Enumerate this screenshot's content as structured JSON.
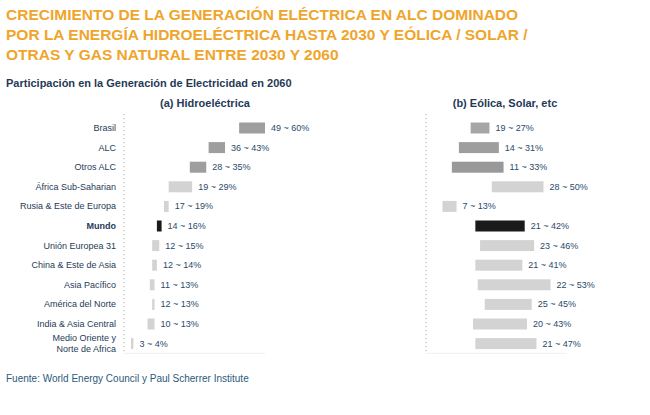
{
  "chart_data": {
    "type": "bar",
    "orientation": "horizontal",
    "title": "CRECIMIENTO DE LA GENERACIÓN ELÉCTRICA EN ALC DOMINADO\nPOR LA ENERGÍA HIDROELÉCTRICA HASTA 2030 Y EÓLICA / SOLAR /\nOTRAS Y GAS NATURAL ENTRE 2030 Y 2060",
    "subtitle": "Participación en la Generación de Electricidad en 2060",
    "source": "Fuente: World Energy Council y Paul Scherrer Institute",
    "categories": [
      "Brasil",
      "ALC",
      "Otros ALC",
      "África Sub-Saharian",
      "Rusia & Este de Europa",
      "Mundo",
      "Unión Europea 31",
      "China & Este de Asia",
      "Asia Pacífico",
      "América del Norte",
      "India & Asia Central",
      "Medio Oriente y\nNorte de Africa"
    ],
    "xlim": [
      0,
      60
    ],
    "tick_labels": "y",
    "data_labels": true,
    "grid": false,
    "series": [
      {
        "name": "(a) Hidroeléctrica",
        "low": [
          49,
          36,
          28,
          19,
          17,
          14,
          12,
          12,
          11,
          12,
          10,
          3
        ],
        "values": [
          60,
          43,
          35,
          29,
          19,
          16,
          15,
          14,
          13,
          13,
          13,
          4
        ],
        "value_labels": [
          "49 ~ 60%",
          "36 ~ 43%",
          "28 ~ 35%",
          "19 ~ 29%",
          "17 ~ 19%",
          "14 ~ 16%",
          "12 ~ 15%",
          "12 ~ 14%",
          "11 ~ 13%",
          "12 ~ 13%",
          "10 ~ 13%",
          "3 ~ 4%"
        ],
        "colors": [
          "#9e9e9e",
          "#9e9e9e",
          "#9e9e9e",
          "#d3d3d3",
          "#d3d3d3",
          "#1a1a1a",
          "#d3d3d3",
          "#d3d3d3",
          "#d3d3d3",
          "#d3d3d3",
          "#d3d3d3",
          "#d3d3d3"
        ]
      },
      {
        "name": "(b) Eólica, Solar, etc",
        "low": [
          19,
          14,
          11,
          28,
          7,
          21,
          23,
          21,
          22,
          25,
          20,
          21
        ],
        "values": [
          27,
          31,
          33,
          50,
          13,
          42,
          46,
          41,
          53,
          45,
          43,
          47
        ],
        "value_labels": [
          "19 ~ 27%",
          "14 ~ 31%",
          "11 ~ 33%",
          "28 ~ 50%",
          "7 ~ 13%",
          "21 ~ 42%",
          "23 ~ 46%",
          "21 ~ 41%",
          "22 ~ 53%",
          "25 ~ 45%",
          "20 ~ 43%",
          "21 ~ 47%"
        ],
        "colors": [
          "#a6a6a6",
          "#9e9e9e",
          "#999999",
          "#d3d3d3",
          "#d3d3d3",
          "#1a1a1a",
          "#d3d3d3",
          "#d3d3d3",
          "#d3d3d3",
          "#d3d3d3",
          "#d3d3d3",
          "#d3d3d3"
        ]
      }
    ]
  }
}
